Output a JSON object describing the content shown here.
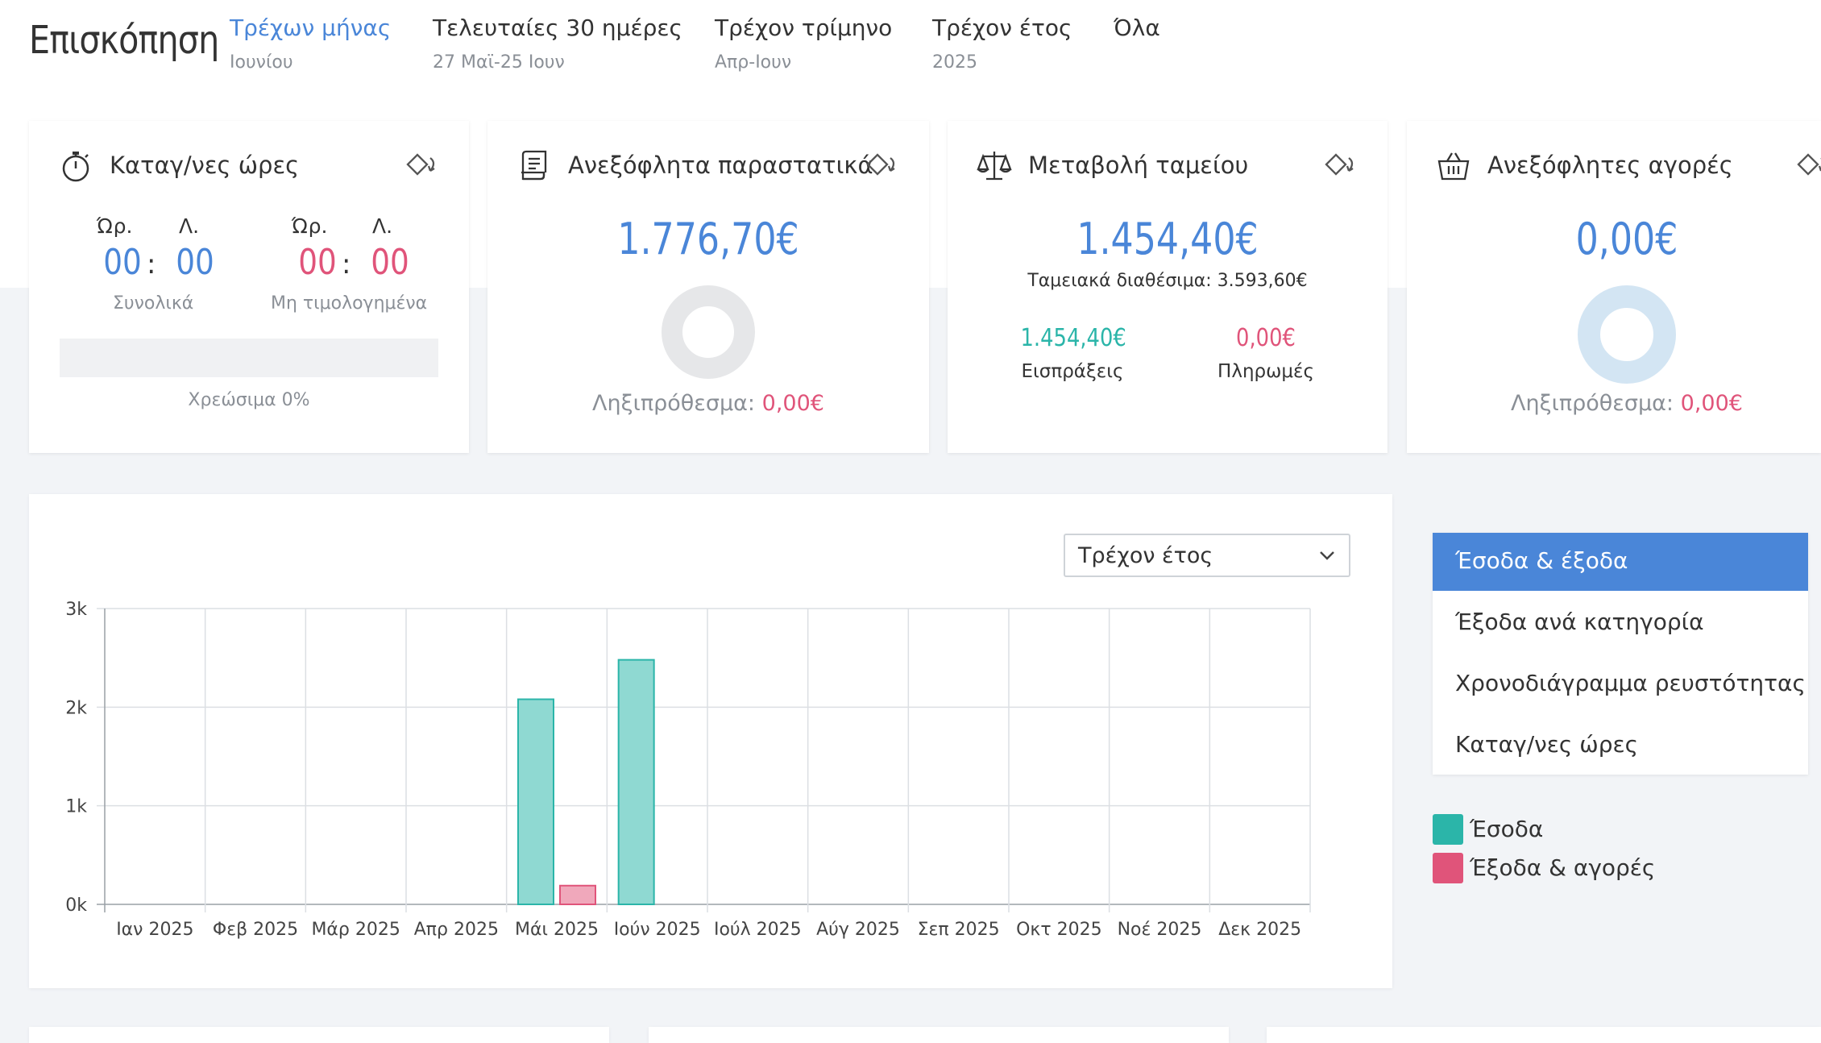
{
  "header": {
    "title": "Επισκόπηση",
    "periods": [
      {
        "label": "Τρέχων μήνας",
        "sub": "Ιουνίου"
      },
      {
        "label": "Τελευταίες 30 ημέρες",
        "sub": "27 Μαϊ-25 Ιουν"
      },
      {
        "label": "Τρέχον τρίμηνο",
        "sub": "Απρ-Ιουν"
      },
      {
        "label": "Τρέχον έτος",
        "sub": "2025"
      },
      {
        "label": "Όλα",
        "sub": ""
      }
    ]
  },
  "cards": {
    "hours": {
      "title": "Καταγ/νες ώρες",
      "h_label": "Ώρ.",
      "m_label": "Λ.",
      "total_h": "00",
      "total_m": "00",
      "total_caption": "Συνολικά",
      "unbilled_h": "00",
      "unbilled_m": "00",
      "unbilled_caption": "Μη τιμολογημένα",
      "separator": ":",
      "billable_text": "Χρεώσιμα 0%",
      "billable_fraction": 0
    },
    "unpaid_invoices": {
      "title": "Ανεξόφλητα παραστατικά",
      "amount": "1.776,70€",
      "overdue_label": "Ληξιπρόθεσμα:",
      "overdue_value": "0,00€"
    },
    "cash": {
      "title": "Μεταβολή ταμείου",
      "amount": "1.454,40€",
      "available": "Ταμειακά διαθέσιμα: 3.593,60€",
      "receipts_value": "1.454,40€",
      "receipts_label": "Εισπράξεις",
      "payments_value": "0,00€",
      "payments_label": "Πληρωμές"
    },
    "unpaid_purchases": {
      "title": "Ανεξόφλητες αγορές",
      "amount": "0,00€",
      "overdue_label": "Ληξιπρόθεσμα:",
      "overdue_value": "0,00€"
    }
  },
  "chart_panel": {
    "select_value": "Τρέχον έτος",
    "menu": [
      "Έσοδα & έξοδα",
      "Έξοδα ανά κατηγορία",
      "Χρονοδιάγραμμα ρευστότητας",
      "Καταγ/νες ώρες"
    ]
  },
  "colors": {
    "accent": "#4a86d8",
    "income": "#2bb5a9",
    "expense": "#e0547a",
    "income_fill": "#8fd9d2",
    "expense_fill": "#f0a8bb"
  },
  "chart_data": {
    "type": "bar",
    "categories": [
      "Ιαν 2025",
      "Φεβ 2025",
      "Μάρ 2025",
      "Απρ 2025",
      "Μάι 2025",
      "Ιούν 2025",
      "Ιούλ 2025",
      "Αύγ 2025",
      "Σεπ 2025",
      "Οκτ 2025",
      "Νοέ 2025",
      "Δεκ 2025"
    ],
    "series": [
      {
        "name": "Έσοδα",
        "values": [
          0,
          0,
          0,
          0,
          2080,
          2480,
          0,
          0,
          0,
          0,
          0,
          0
        ]
      },
      {
        "name": "Έξοδα & αγορές",
        "values": [
          0,
          0,
          0,
          0,
          190,
          0,
          0,
          0,
          0,
          0,
          0,
          0
        ]
      }
    ],
    "yticks": [
      "0k",
      "1k",
      "2k",
      "3k"
    ],
    "ylim": [
      0,
      3000
    ],
    "grid": true,
    "legend_position": "right"
  }
}
